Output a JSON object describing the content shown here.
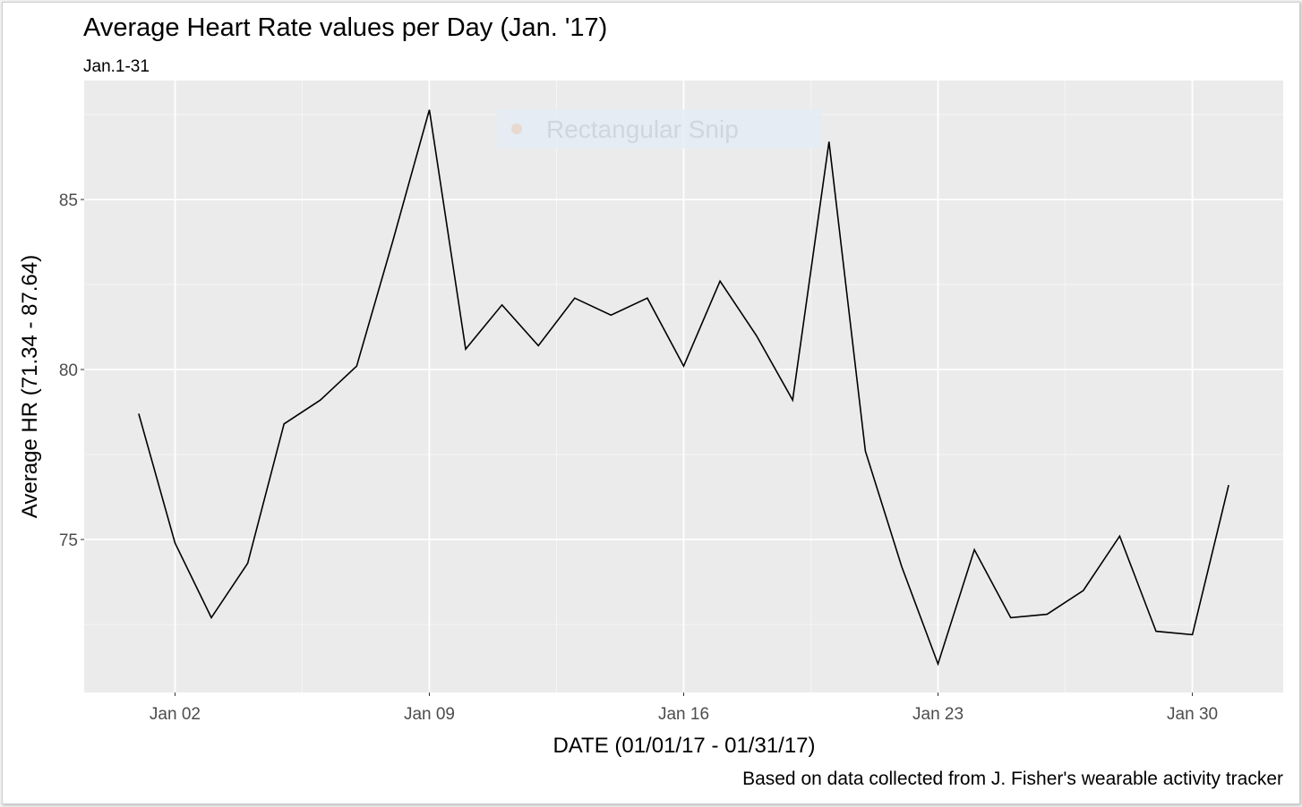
{
  "overlay": {
    "label": "Rectangular Snip"
  },
  "colors": {
    "panel_background": "#ebebeb",
    "grid_major": "#ffffff",
    "grid_minor": "#f5f5f5",
    "line": "#000000",
    "axis_text": "#4d4d4d",
    "title_text": "#000000",
    "snip_box": "#e3ecf5",
    "snip_text": "#cfd6e0"
  },
  "chart_data": {
    "type": "line",
    "title": "Average Heart Rate values per Day (Jan. '17)",
    "subtitle": "Jan.1-31",
    "xlabel": "DATE (01/01/17 - 01/31/17)",
    "ylabel": "Average HR (71.34 - 87.64)",
    "caption": "Based on data collected from J. Fisher's wearable activity tracker",
    "x_tick_labels": [
      "Jan 02",
      "Jan 09",
      "Jan 16",
      "Jan 23",
      "Jan 30"
    ],
    "x_tick_days": [
      2,
      9,
      16,
      23,
      30
    ],
    "y_tick_labels": [
      "75",
      "80",
      "85"
    ],
    "y_ticks": [
      75,
      80,
      85
    ],
    "xlim": [
      -0.5,
      32.5
    ],
    "ylim": [
      70.5,
      88.5
    ],
    "grid": true,
    "legend": "none",
    "series": [
      {
        "x": [
          1,
          2,
          3,
          4,
          5,
          6,
          7,
          8,
          9,
          10,
          11,
          12,
          13,
          14,
          15,
          16,
          17,
          18,
          19,
          20,
          21,
          22,
          23,
          24,
          25,
          26,
          27,
          28,
          29,
          30,
          31
        ],
        "values": [
          78.7,
          74.9,
          72.7,
          74.3,
          78.4,
          79.1,
          80.1,
          83.8,
          87.64,
          80.6,
          81.9,
          80.7,
          82.1,
          81.6,
          82.1,
          80.1,
          82.6,
          81.0,
          79.1,
          86.7,
          77.6,
          74.2,
          71.34,
          74.7,
          72.7,
          72.8,
          73.5,
          75.1,
          72.3,
          72.2,
          76.6
        ]
      }
    ]
  }
}
